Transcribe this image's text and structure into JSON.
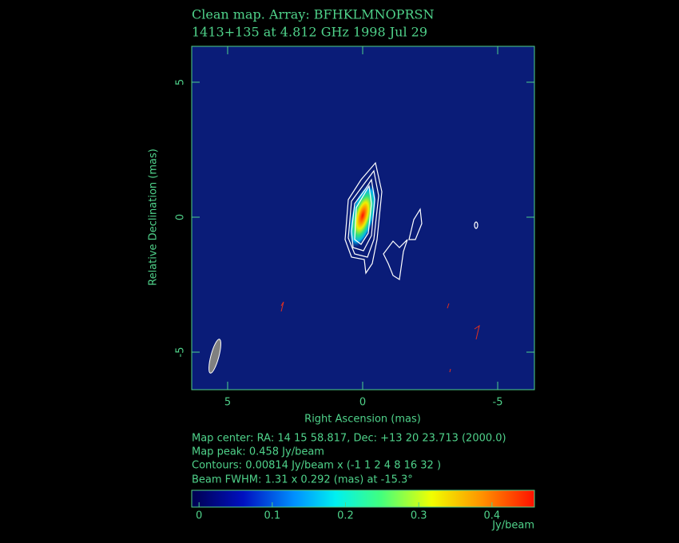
{
  "chart_data": {
    "type": "contour",
    "title": "Clean map.  Array: BFHKLMNOPRSN",
    "subtitle": "1413+135 at 4.812 GHz 1998 Jul 29",
    "x_label": "Right Ascension  (mas)",
    "y_label": "Relative Declination  (mas)",
    "xlim": [
      6.33,
      -6.36
    ],
    "xticks": [
      5,
      0,
      -5
    ],
    "ylim": [
      -6.39,
      6.33
    ],
    "yticks": [
      -5,
      0,
      5
    ],
    "annotations": [
      "Map center:  RA: 14 15 58.817,  Dec: +13 20 23.713 (2000.0)",
      "Map peak: 0.458 Jy/beam",
      "Contours: 0.00814 Jy/beam x (-1 1 2 4 8 16 32 )",
      "Beam FWHM: 1.31 x 0.292 (mas) at -15.3°"
    ],
    "colorbar": {
      "label": "Jy/beam",
      "lim": [
        -0.01,
        0.458
      ],
      "ticks": [
        0,
        0.1,
        0.2,
        0.3,
        0.4
      ]
    }
  }
}
